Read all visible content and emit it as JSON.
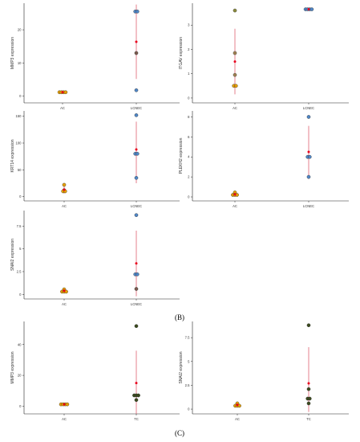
{
  "panel_labels": [
    "(B)",
    "(C)"
  ],
  "chart_data": [
    {
      "type": "scatter",
      "section": "B",
      "ylabel": "MMP3 expression",
      "categories": [
        "AC",
        "LCNEC"
      ],
      "yticks": [
        0,
        10,
        20
      ],
      "ylim": [
        -2,
        28
      ],
      "points": {
        "AC": [
          1.2,
          1.2,
          1.2,
          1.2
        ],
        "LCNEC": [
          25.5,
          25.5,
          13.0,
          1.8
        ]
      },
      "point_colors": {
        "AC": [
          "#E69F00",
          "#E69F00",
          "#E69F00",
          "#E69F00"
        ],
        "LCNEC": [
          "#4F86C6",
          "#4F86C6",
          "#7A5A4E",
          "#4F86C6"
        ]
      },
      "mean": {
        "AC": 1.2,
        "LCNEC": 16.4
      },
      "range": {
        "AC": [
          1.2,
          1.2
        ],
        "LCNEC": [
          5.2,
          27.6
        ]
      }
    },
    {
      "type": "scatter",
      "section": "B",
      "ylabel": "ITGAV expression",
      "categories": [
        "AC",
        "LCNEC"
      ],
      "yticks": [
        0,
        1,
        2,
        3
      ],
      "ylim": [
        -0.2,
        3.9
      ],
      "points": {
        "AC": [
          3.6,
          1.85,
          0.95,
          0.5,
          0.5
        ],
        "LCNEC": [
          3.65,
          3.65,
          3.65,
          3.65
        ]
      },
      "point_colors": {
        "AC": [
          "#8A8A3C",
          "#A08050",
          "#A08050",
          "#E69F00",
          "#E69F00"
        ],
        "LCNEC": [
          "#4F86C6",
          "#4F86C6",
          "#4F86C6",
          "#4F86C6"
        ]
      },
      "mean": {
        "AC": 1.5,
        "LCNEC": 3.65
      },
      "range": {
        "AC": [
          0.15,
          2.85
        ],
        "LCNEC": [
          3.65,
          3.65
        ]
      }
    },
    {
      "type": "scatter",
      "section": "B",
      "ylabel": "KRT14 expression",
      "categories": [
        "AC",
        "LCNEC"
      ],
      "yticks": [
        0,
        50,
        100,
        150
      ],
      "ylim": [
        -8,
        160
      ],
      "points": {
        "AC": [
          22,
          12,
          10,
          10
        ],
        "LCNEC": [
          152,
          80,
          80,
          35
        ]
      },
      "point_colors": {
        "AC": [
          "#E69F00",
          "#7A5A4E",
          "#E69F00",
          "#E69F00"
        ],
        "LCNEC": [
          "#4F86C6",
          "#4F86C6",
          "#4F86C6",
          "#4F86C6"
        ]
      },
      "mean": {
        "AC": 13,
        "LCNEC": 88
      },
      "range": {
        "AC": [
          6,
          20
        ],
        "LCNEC": [
          25,
          140
        ]
      }
    },
    {
      "type": "scatter",
      "section": "B",
      "ylabel": "PLEKH2 expression",
      "categories": [
        "AC",
        "LCNEC"
      ],
      "yticks": [
        0,
        2,
        4,
        6,
        8
      ],
      "ylim": [
        -0.4,
        8.6
      ],
      "points": {
        "AC": [
          0.45,
          0.2,
          0.2,
          0.2
        ],
        "LCNEC": [
          8.0,
          4.0,
          4.0,
          2.0
        ]
      },
      "point_colors": {
        "AC": [
          "#E69F00",
          "#E69F00",
          "#E69F00",
          "#E69F00"
        ],
        "LCNEC": [
          "#4F86C6",
          "#4F86C6",
          "#4F86C6",
          "#4F86C6"
        ]
      },
      "mean": {
        "AC": 0.25,
        "LCNEC": 4.5
      },
      "range": {
        "AC": [
          0.25,
          0.25
        ],
        "LCNEC": [
          1.8,
          7.1
        ]
      }
    },
    {
      "type": "scatter",
      "section": "B",
      "ylabel": "SNAI2 expression",
      "categories": [
        "AC",
        "LCNEC"
      ],
      "yticks": [
        0.0,
        2.5,
        5.0,
        7.5
      ],
      "ylim": [
        -0.5,
        9.2
      ],
      "points": {
        "AC": [
          0.55,
          0.3,
          0.3,
          0.3
        ],
        "LCNEC": [
          8.7,
          2.2,
          2.2,
          0.6
        ]
      },
      "point_colors": {
        "AC": [
          "#E69F00",
          "#E69F00",
          "#E69F00",
          "#E69F00"
        ],
        "LCNEC": [
          "#4F86C6",
          "#4F86C6",
          "#4F86C6",
          "#7A5A4E"
        ]
      },
      "mean": {
        "AC": 0.4,
        "LCNEC": 3.4
      },
      "range": {
        "AC": [
          0.4,
          0.4
        ],
        "LCNEC": [
          -0.2,
          7.0
        ]
      }
    },
    {
      "type": "scatter",
      "section": "C",
      "ylabel": "MMP3 expression",
      "categories": [
        "AC",
        "TC"
      ],
      "yticks": [
        0,
        20,
        40
      ],
      "ylim": [
        -5,
        55
      ],
      "points": {
        "AC": [
          1.2,
          1.2,
          1.2,
          1.2
        ],
        "TC": [
          52,
          7,
          7,
          7,
          4
        ]
      },
      "point_colors": {
        "AC": [
          "#E69F00",
          "#E69F00",
          "#E69F00",
          "#E69F00"
        ],
        "TC": [
          "#3B4A1E",
          "#3B4A1E",
          "#3B4A1E",
          "#3B4A1E",
          "#3B4A1E"
        ]
      },
      "mean": {
        "AC": 1.2,
        "TC": 15
      },
      "range": {
        "AC": [
          1.2,
          1.2
        ],
        "TC": [
          -5,
          36
        ]
      }
    },
    {
      "type": "scatter",
      "section": "C",
      "ylabel": "SNAI2 expression",
      "categories": [
        "AC",
        "TC"
      ],
      "yticks": [
        0.0,
        2.5,
        5.0,
        7.5
      ],
      "ylim": [
        -0.5,
        9.2
      ],
      "points": {
        "AC": [
          0.6,
          0.35,
          0.35,
          0.35
        ],
        "TC": [
          8.8,
          2.1,
          1.1,
          1.1,
          0.6
        ]
      },
      "point_colors": {
        "AC": [
          "#E69F00",
          "#E69F00",
          "#E69F00",
          "#E69F00"
        ],
        "TC": [
          "#3B4A1E",
          "#3B4A1E",
          "#3B4A1E",
          "#3B4A1E",
          "#3B4A1E"
        ]
      },
      "mean": {
        "AC": 0.45,
        "TC": 2.7
      },
      "range": {
        "AC": [
          0.45,
          0.45
        ],
        "TC": [
          -0.3,
          6.5
        ]
      }
    }
  ],
  "colors": {
    "mean": "#E8001C",
    "range": "#D94B5E",
    "axis": "#222222"
  }
}
